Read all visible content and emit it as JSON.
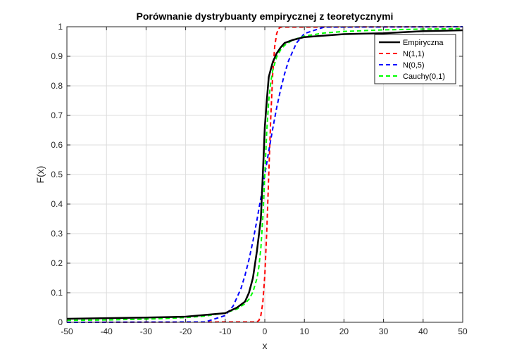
{
  "chart_data": {
    "type": "line",
    "title": "Porównanie dystrybuanty empirycznej z teoretycznymi",
    "xlabel": "x",
    "ylabel": "F(x)",
    "xlim": [
      -50,
      50
    ],
    "ylim": [
      0,
      1
    ],
    "xticks": [
      -50,
      -40,
      -30,
      -20,
      -10,
      0,
      10,
      20,
      30,
      40,
      50
    ],
    "yticks": [
      0,
      0.1,
      0.2,
      0.3,
      0.4,
      0.5,
      0.6,
      0.7,
      0.8,
      0.9,
      1
    ],
    "xtick_labels": [
      "-50",
      "-40",
      "-30",
      "-20",
      "-10",
      "0",
      "10",
      "20",
      "30",
      "40",
      "50"
    ],
    "ytick_labels": [
      "0",
      "0.1",
      "0.2",
      "0.3",
      "0.4",
      "0.5",
      "0.6",
      "0.7",
      "0.8",
      "0.9",
      "1"
    ],
    "grid": true,
    "legend_position": "top-right",
    "series": [
      {
        "name": "Empiryczna",
        "color": "#000000",
        "style": "solid",
        "x": [
          -50,
          -40,
          -30,
          -20,
          -15,
          -10,
          -7,
          -5,
          -4,
          -3,
          -2,
          -1,
          -0.5,
          0,
          0.5,
          1,
          2,
          3,
          4,
          5,
          7,
          10,
          15,
          20,
          30,
          40,
          50
        ],
        "y": [
          0.012,
          0.014,
          0.016,
          0.019,
          0.025,
          0.031,
          0.05,
          0.07,
          0.1,
          0.15,
          0.24,
          0.35,
          0.5,
          0.66,
          0.75,
          0.83,
          0.88,
          0.91,
          0.93,
          0.945,
          0.955,
          0.965,
          0.97,
          0.975,
          0.978,
          0.985,
          0.988
        ]
      },
      {
        "name": "N(1,1)",
        "color": "#ff0000",
        "style": "dashed",
        "x": [
          -50,
          -2,
          -1.5,
          -1,
          -0.5,
          0,
          0.5,
          1,
          1.5,
          2,
          2.5,
          3,
          3.5,
          4,
          50
        ],
        "y": [
          0,
          0.0013,
          0.006,
          0.023,
          0.067,
          0.159,
          0.309,
          0.5,
          0.691,
          0.841,
          0.933,
          0.977,
          0.994,
          0.9987,
          1
        ]
      },
      {
        "name": "N(0,5)",
        "color": "#0000ff",
        "style": "dashed",
        "x": [
          -50,
          -15,
          -10,
          -8,
          -6,
          -5,
          -4,
          -3,
          -2,
          -1,
          0,
          1,
          2,
          3,
          4,
          5,
          6,
          8,
          10,
          15,
          50
        ],
        "y": [
          0,
          0.0013,
          0.023,
          0.055,
          0.115,
          0.159,
          0.212,
          0.274,
          0.345,
          0.421,
          0.5,
          0.579,
          0.655,
          0.726,
          0.788,
          0.841,
          0.885,
          0.945,
          0.977,
          0.9987,
          1
        ]
      },
      {
        "name": "Cauchy(0,1)",
        "color": "#00ff00",
        "style": "dashed",
        "x": [
          -50,
          -40,
          -30,
          -20,
          -15,
          -10,
          -7,
          -5,
          -4,
          -3,
          -2,
          -1.5,
          -1,
          -0.5,
          0,
          0.5,
          1,
          1.5,
          2,
          3,
          4,
          5,
          7,
          10,
          15,
          20,
          30,
          40,
          50
        ],
        "y": [
          0.0064,
          0.008,
          0.0106,
          0.0159,
          0.0212,
          0.0317,
          0.0452,
          0.0628,
          0.078,
          0.1024,
          0.1476,
          0.1872,
          0.25,
          0.3524,
          0.5,
          0.6476,
          0.75,
          0.8128,
          0.8524,
          0.8976,
          0.922,
          0.9372,
          0.9548,
          0.9683,
          0.9788,
          0.9841,
          0.9894,
          0.992,
          0.9936
        ]
      }
    ]
  }
}
